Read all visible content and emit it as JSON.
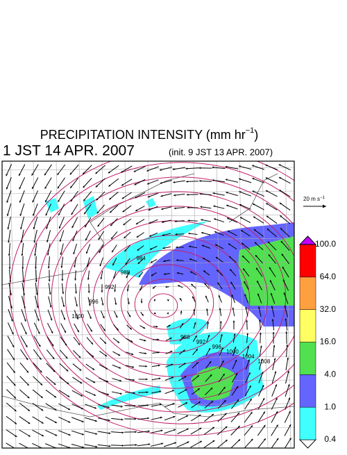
{
  "header": {
    "title": [
      "PRECIPITATION INTENSITY (mm hr",
      "−1",
      ")"
    ],
    "valid_time": "1 JST 14 APR. 2007",
    "init_time": "(init. 9 JST 13 APR. 2007)"
  },
  "wind_scale": [
    "20 m s",
    "−1"
  ],
  "isobar_labels": [
    "1000",
    "996",
    "992",
    "988",
    "984",
    "988",
    "992",
    "996",
    "1000",
    "1004",
    "1008"
  ],
  "colorbar": {
    "labels": [
      "0.4",
      "1.0",
      "4.0",
      "16.0",
      "32.0",
      "64.0",
      "100.0"
    ],
    "colors": [
      "#ffffff",
      "#40ffff",
      "#6464ff",
      "#50e050",
      "#ffff64",
      "#ffa040",
      "#ff0000",
      "#c000ff"
    ]
  }
}
